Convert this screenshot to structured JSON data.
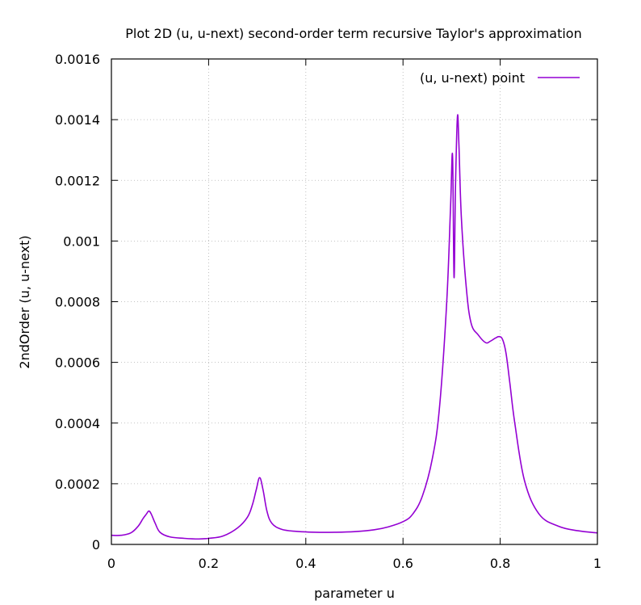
{
  "chart_data": {
    "type": "line",
    "title": "Plot 2D (u, u-next) second-order term recursive Taylor's approximation",
    "xlabel": "parameter u",
    "ylabel": "2ndOrder (u, u-next)",
    "xlim": [
      0,
      1
    ],
    "ylim": [
      0,
      0.0016
    ],
    "x_ticks": [
      0,
      0.2,
      0.4,
      0.6,
      0.8,
      1
    ],
    "x_tick_labels": [
      "0",
      "0.2",
      "0.4",
      "0.6",
      "0.8",
      "1"
    ],
    "y_ticks": [
      0,
      0.0002,
      0.0004,
      0.0006,
      0.0008,
      0.001,
      0.0012,
      0.0014,
      0.0016
    ],
    "y_tick_labels": [
      "0",
      "0.0002",
      "0.0004",
      "0.0006",
      "0.0008",
      "0.001",
      "0.0012",
      "0.0014",
      "0.0016"
    ],
    "grid": true,
    "legend_position": "top-right",
    "series": [
      {
        "name": "(u, u-next) point",
        "color": "#9400d3",
        "x": [
          0,
          0.02,
          0.04,
          0.055,
          0.065,
          0.072,
          0.077,
          0.082,
          0.09,
          0.1,
          0.12,
          0.15,
          0.18,
          0.2,
          0.23,
          0.26,
          0.28,
          0.29,
          0.298,
          0.305,
          0.312,
          0.32,
          0.33,
          0.35,
          0.38,
          0.42,
          0.46,
          0.5,
          0.54,
          0.57,
          0.6,
          0.62,
          0.64,
          0.66,
          0.675,
          0.69,
          0.698,
          0.702,
          0.705,
          0.708,
          0.712,
          0.715,
          0.72,
          0.73,
          0.74,
          0.755,
          0.77,
          0.78,
          0.79,
          0.798,
          0.805,
          0.812,
          0.82,
          0.83,
          0.85,
          0.88,
          0.92,
          0.96,
          1.0
        ],
        "y": [
          3e-05,
          3e-05,
          3.8e-05,
          6e-05,
          8.5e-05,
          0.0001,
          0.00011,
          0.0001,
          7e-05,
          4e-05,
          2.5e-05,
          2e-05,
          1.8e-05,
          2e-05,
          2.8e-05,
          5.5e-05,
          9e-05,
          0.00013,
          0.00018,
          0.00022,
          0.00018,
          0.00011,
          7e-05,
          5e-05,
          4.3e-05,
          4e-05,
          4e-05,
          4.2e-05,
          4.8e-05,
          5.8e-05,
          7.5e-05,
          0.0001,
          0.00016,
          0.00028,
          0.00045,
          0.0008,
          0.00112,
          0.00128,
          0.00088,
          0.00118,
          0.00141,
          0.00132,
          0.00108,
          0.00085,
          0.00073,
          0.00069,
          0.000665,
          0.00067,
          0.00068,
          0.000685,
          0.000675,
          0.00063,
          0.00053,
          0.0004,
          0.00021,
          0.0001,
          6e-05,
          4.5e-05,
          3.8e-05
        ]
      }
    ]
  }
}
